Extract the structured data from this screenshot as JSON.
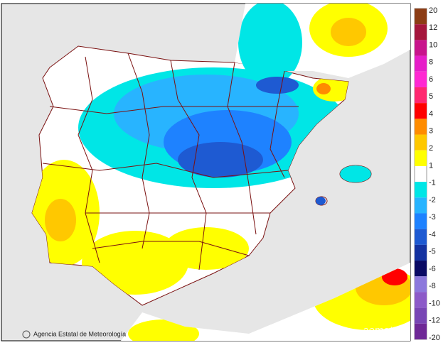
{
  "legend": [
    {
      "label": 20,
      "color": "#8c3c14"
    },
    {
      "label": 12,
      "color": "#a5163c"
    },
    {
      "label": 10,
      "color": "#c8148c"
    },
    {
      "label": 8,
      "color": "#e61ec8"
    },
    {
      "label": 6,
      "color": "#ff28d2"
    },
    {
      "label": 5,
      "color": "#ff2870"
    },
    {
      "label": 4,
      "color": "#ff0000"
    },
    {
      "label": 3,
      "color": "#ff8c00"
    },
    {
      "label": 2,
      "color": "#ffc800"
    },
    {
      "label": 1,
      "color": "#ffff00"
    },
    {
      "label": -1,
      "color": "#00e6e6"
    },
    {
      "label": -2,
      "color": "#28b4ff"
    },
    {
      "label": -3,
      "color": "#1e82ff"
    },
    {
      "label": -4,
      "color": "#1e5ad2"
    },
    {
      "label": -5,
      "color": "#1432a0"
    },
    {
      "label": -6,
      "color": "#0a0a64"
    },
    {
      "label": -8,
      "color": "#8c78dc"
    },
    {
      "label": -10,
      "color": "#8c5ac8"
    },
    {
      "label": -12,
      "color": "#7846b4"
    },
    {
      "label": -20,
      "color": "#6e2896"
    }
  ],
  "attribution": "Agencia Estatal de Meteorología",
  "watermark": "aemet"
}
